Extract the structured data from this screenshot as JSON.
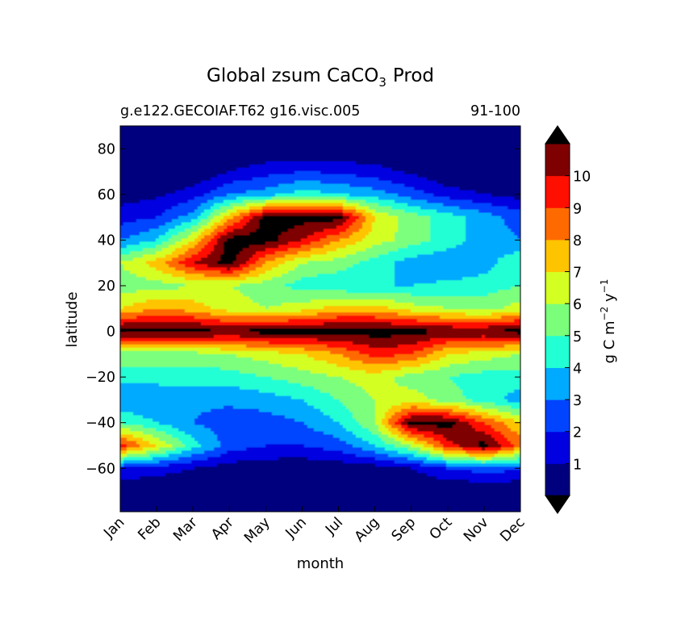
{
  "chart_data": {
    "type": "heatmap",
    "title": "Global zsum CaCO",
    "title_subscript": "3",
    "title_suffix": "Prod",
    "subtitle_left": "g.e122.GECOIAF.T62 g16.visc.005",
    "subtitle_right": "91-100",
    "xlabel": "month",
    "ylabel": "latitude",
    "x_categories": [
      "Jan",
      "Feb",
      "Mar",
      "Apr",
      "May",
      "Jun",
      "Jul",
      "Aug",
      "Sep",
      "Oct",
      "Nov",
      "Dec"
    ],
    "ylim": [
      -79,
      90
    ],
    "y_ticks": [
      80,
      60,
      40,
      20,
      0,
      -20,
      -40,
      -60
    ],
    "colorbar": {
      "label": "g C m",
      "label_sup1": "−2",
      "label_mid": " y",
      "label_sup2": "−1",
      "ticks": [
        "1",
        "2",
        "3",
        "4",
        "5",
        "6",
        "7",
        "8",
        "9",
        "10"
      ],
      "levels": [
        0,
        1,
        2,
        3,
        4,
        5,
        6,
        7,
        8,
        9,
        10,
        11
      ],
      "colors": [
        "#00007f",
        "#0000e0",
        "#0044ff",
        "#00aaff",
        "#22ffd4",
        "#7bff7b",
        "#d4ff22",
        "#ffc400",
        "#ff6a00",
        "#ff0f00",
        "#7f0000"
      ],
      "over_color": "#000000",
      "under_color": "#000000",
      "extend": "both"
    },
    "approx_values": {
      "note_lat": [
        88,
        80,
        70,
        60,
        50,
        40,
        30,
        20,
        10,
        0,
        -10,
        -20,
        -30,
        -40,
        -50,
        -60,
        -70
      ],
      "rows": [
        [
          0,
          0,
          0,
          0,
          0,
          0,
          0,
          0,
          0,
          0,
          0,
          0
        ],
        [
          0,
          0,
          0,
          0,
          0,
          0,
          0,
          0,
          0,
          0,
          0,
          0
        ],
        [
          0,
          0,
          0,
          1,
          1.6,
          2,
          1.8,
          1.4,
          0.8,
          0,
          0,
          0
        ],
        [
          0.5,
          0.8,
          1.5,
          3,
          3.5,
          4.5,
          4,
          3.5,
          2.5,
          1.5,
          1,
          0.6
        ],
        [
          1.5,
          2,
          3.5,
          7.5,
          11.5,
          11.5,
          11.5,
          7,
          5.5,
          4.5,
          3.5,
          2.5
        ],
        [
          3,
          4,
          7,
          11.5,
          11.5,
          10,
          8,
          6.5,
          5.5,
          4.5,
          3.5,
          3
        ],
        [
          6,
          7.5,
          10,
          11.5,
          8,
          6,
          5.5,
          4.5,
          3.5,
          3.2,
          3.5,
          5
        ],
        [
          5.5,
          5.5,
          6,
          6,
          5.5,
          4.5,
          4.2,
          4,
          4,
          4.2,
          4.5,
          5
        ],
        [
          7,
          8,
          7.5,
          6.5,
          6,
          6.5,
          7.5,
          7.5,
          6.5,
          6,
          5.5,
          6.5
        ],
        [
          11.5,
          11.5,
          11.5,
          11,
          11.5,
          11.5,
          11.5,
          11.5,
          11.5,
          11,
          11,
          11.5
        ],
        [
          5.5,
          5.5,
          5.5,
          6,
          6.5,
          7,
          8,
          9.5,
          9,
          7,
          6.5,
          6
        ],
        [
          4.5,
          4.5,
          4.5,
          4.5,
          5,
          5.5,
          6,
          6.5,
          5.5,
          5,
          4.5,
          4.5
        ],
        [
          3,
          3,
          3.2,
          3.2,
          3.5,
          4,
          5,
          6,
          6.5,
          5.5,
          4.5,
          3.5
        ],
        [
          5,
          4,
          3,
          2.5,
          2.5,
          3,
          4,
          6,
          11.5,
          11.5,
          9,
          7
        ],
        [
          9.5,
          7,
          4.5,
          2.5,
          2,
          2,
          2.5,
          4,
          6,
          9.5,
          11.5,
          8.5
        ],
        [
          2,
          1.5,
          1,
          0.5,
          0.3,
          0.2,
          0.3,
          0.5,
          1,
          2,
          2.5,
          2.2
        ],
        [
          0,
          0,
          0,
          0,
          0,
          0,
          0,
          0,
          0,
          0,
          0,
          0
        ]
      ]
    }
  }
}
